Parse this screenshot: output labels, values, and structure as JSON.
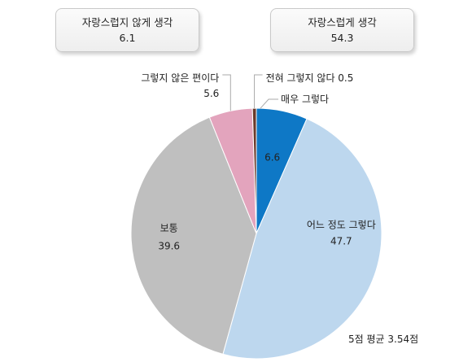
{
  "summary": {
    "negative": {
      "label": "자랑스럽지 않게 생각",
      "value": "6.1"
    },
    "positive": {
      "label": "자랑스럽게 생각",
      "value": "54.3"
    }
  },
  "footnote": "5점 평균 3.54점",
  "colors": {
    "매우 그렇다": "#0e78c6",
    "어느 정도 그렇다": "#bdd7ee",
    "보통": "#bfbfbf",
    "그렇지 않은 편이다": "#e3a4bd",
    "전혀 그렇지 않다": "#6b3a2a"
  },
  "chart_data": {
    "type": "pie",
    "start": "12 o'clock, clockwise",
    "slices": [
      {
        "label": "매우 그렇다",
        "value": 6.6
      },
      {
        "label": "어느 정도 그렇다",
        "value": 47.7
      },
      {
        "label": "보통",
        "value": 39.6
      },
      {
        "label": "그렇지 않은 편이다",
        "value": 5.6
      },
      {
        "label": "전혀 그렇지 않다",
        "value": 0.5
      }
    ]
  }
}
